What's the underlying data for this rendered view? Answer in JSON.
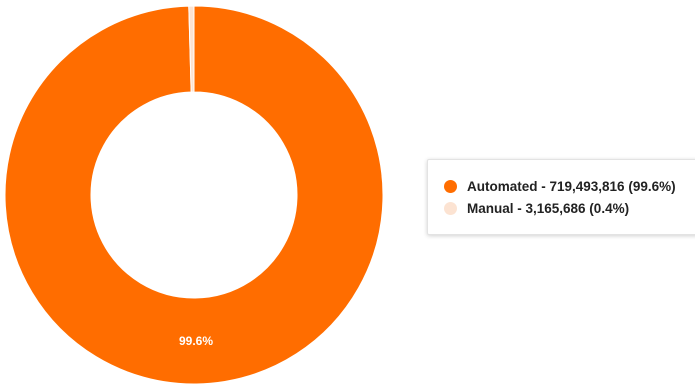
{
  "chart_data": {
    "type": "pie",
    "donut": true,
    "categories": [
      "Automated",
      "Manual"
    ],
    "values": [
      719493816,
      3165686
    ],
    "percentages": [
      99.6,
      0.4
    ],
    "colors": [
      "#FF6D00",
      "#FCE3D2"
    ],
    "slice_labels": [
      "99.6%",
      ""
    ],
    "legend": {
      "placement": "right",
      "entries": [
        "Automated - 719,493,816 (99.6%)",
        "Manual - 3,165,686 (0.4%)"
      ]
    }
  }
}
